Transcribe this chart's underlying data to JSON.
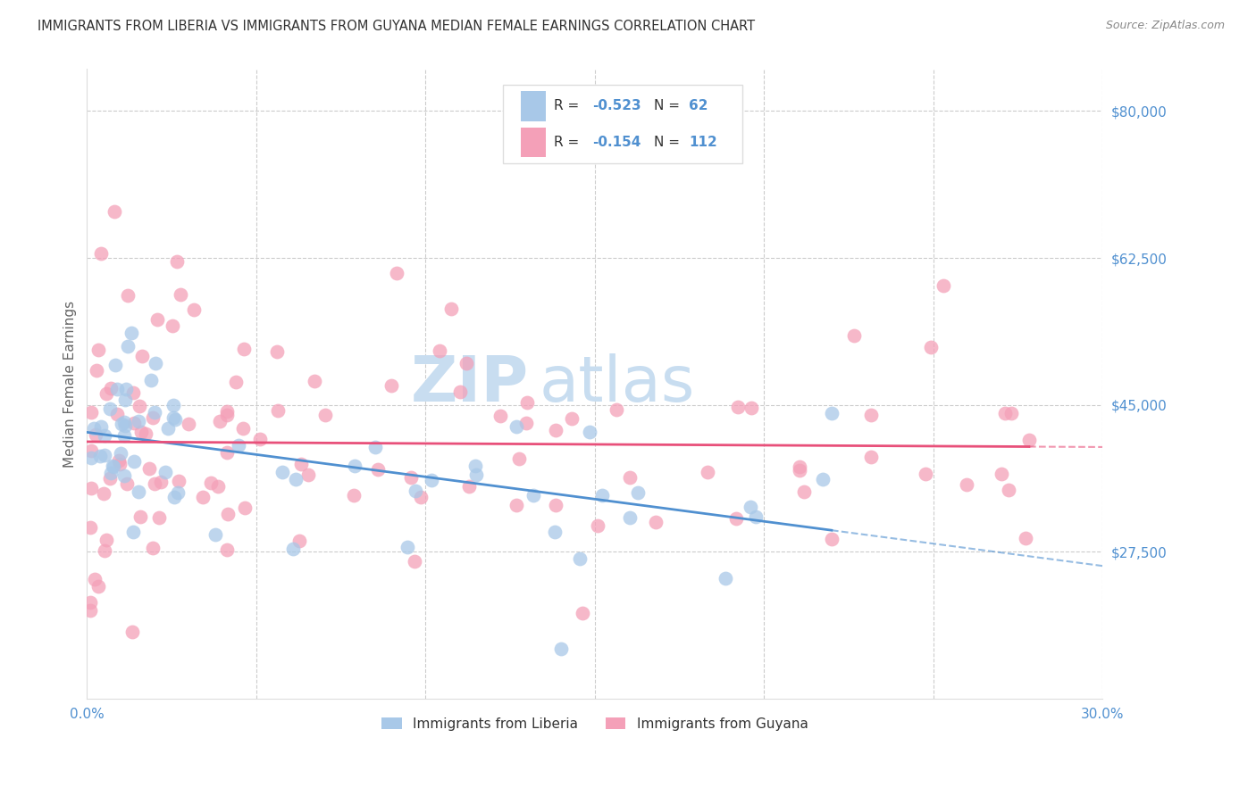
{
  "title": "IMMIGRANTS FROM LIBERIA VS IMMIGRANTS FROM GUYANA MEDIAN FEMALE EARNINGS CORRELATION CHART",
  "source": "Source: ZipAtlas.com",
  "ylabel": "Median Female Earnings",
  "xlim": [
    0.0,
    0.3
  ],
  "ylim": [
    10000,
    85000
  ],
  "ytick_vals": [
    27500,
    45000,
    62500,
    80000
  ],
  "ytick_labels": [
    "$27,500",
    "$45,000",
    "$62,500",
    "$80,000"
  ],
  "liberia_R": -0.523,
  "liberia_N": 62,
  "guyana_R": -0.154,
  "guyana_N": 112,
  "liberia_color": "#a8c8e8",
  "guyana_color": "#f4a0b8",
  "liberia_line_color": "#5090d0",
  "guyana_line_color": "#e8507a",
  "watermark_zip_color": "#c8ddf0",
  "watermark_atlas_color": "#c8ddf0",
  "background_color": "#ffffff",
  "grid_color": "#cccccc",
  "title_color": "#333333",
  "source_color": "#888888",
  "axis_label_color": "#666666",
  "tick_color": "#5090d0",
  "legend_border_color": "#dddddd",
  "legend_text_color": "#333333",
  "legend_val_color": "#5090d0"
}
